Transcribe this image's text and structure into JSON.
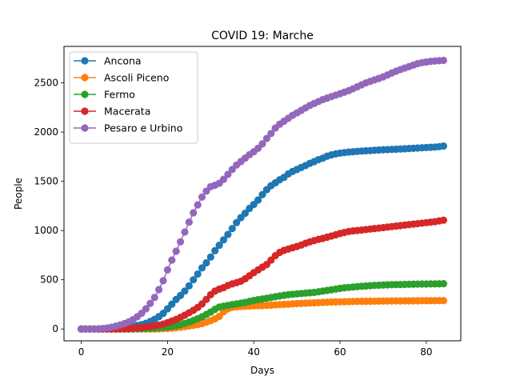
{
  "chart_data": {
    "type": "line",
    "title": "COVID 19: Marche",
    "xlabel": "Days",
    "ylabel": "People",
    "xlim": [
      -4,
      88
    ],
    "ylim": [
      -120,
      2870
    ],
    "xticks": [
      0,
      20,
      40,
      60,
      80
    ],
    "yticks": [
      0,
      500,
      1000,
      1500,
      2000,
      2500
    ],
    "grid": false,
    "legend_position": "upper-left",
    "marker": "circle",
    "x": [
      0,
      1,
      2,
      3,
      4,
      5,
      6,
      7,
      8,
      9,
      10,
      11,
      12,
      13,
      14,
      15,
      16,
      17,
      18,
      19,
      20,
      21,
      22,
      23,
      24,
      25,
      26,
      27,
      28,
      29,
      30,
      31,
      32,
      33,
      34,
      35,
      36,
      37,
      38,
      39,
      40,
      41,
      42,
      43,
      44,
      45,
      46,
      47,
      48,
      49,
      50,
      51,
      52,
      53,
      54,
      55,
      56,
      57,
      58,
      59,
      60,
      61,
      62,
      63,
      64,
      65,
      66,
      67,
      68,
      69,
      70,
      71,
      72,
      73,
      74,
      75,
      76,
      77,
      78,
      79,
      80,
      81,
      82,
      83,
      84
    ],
    "series": [
      {
        "name": "Ancona",
        "color": "#1f77b4",
        "values": [
          0,
          0,
          0,
          0,
          0,
          2,
          4,
          6,
          8,
          11,
          16,
          22,
          29,
          36,
          45,
          58,
          76,
          98,
          125,
          158,
          205,
          252,
          300,
          340,
          385,
          438,
          500,
          558,
          620,
          672,
          730,
          795,
          850,
          905,
          960,
          1020,
          1080,
          1130,
          1175,
          1225,
          1265,
          1310,
          1365,
          1415,
          1455,
          1485,
          1515,
          1540,
          1575,
          1600,
          1620,
          1640,
          1660,
          1682,
          1700,
          1720,
          1735,
          1755,
          1768,
          1778,
          1786,
          1792,
          1797,
          1800,
          1804,
          1807,
          1810,
          1812,
          1815,
          1818,
          1820,
          1822,
          1824,
          1826,
          1828,
          1830,
          1833,
          1835,
          1838,
          1840,
          1843,
          1845,
          1847,
          1852,
          1858
        ]
      },
      {
        "name": "Ascoli Piceno",
        "color": "#ff7f0e",
        "values": [
          0,
          0,
          0,
          0,
          0,
          0,
          0,
          0,
          0,
          0,
          0,
          0,
          0,
          0,
          0,
          0,
          0,
          0,
          2,
          4,
          6,
          9,
          13,
          18,
          24,
          30,
          37,
          45,
          55,
          68,
          84,
          103,
          128,
          175,
          205,
          220,
          225,
          228,
          230,
          232,
          234,
          236,
          238,
          240,
          242,
          245,
          248,
          250,
          252,
          255,
          258,
          260,
          262,
          264,
          266,
          268,
          270,
          272,
          274,
          275,
          276,
          277,
          278,
          279,
          280,
          281,
          281,
          282,
          282,
          283,
          283,
          284,
          284,
          285,
          285,
          285,
          286,
          286,
          286,
          287,
          287,
          287,
          287,
          288,
          288
        ]
      },
      {
        "name": "Fermo",
        "color": "#2ca02c",
        "values": [
          0,
          0,
          0,
          0,
          0,
          0,
          0,
          0,
          0,
          0,
          0,
          1,
          2,
          3,
          4,
          5,
          7,
          9,
          12,
          15,
          20,
          26,
          34,
          44,
          56,
          70,
          86,
          104,
          124,
          148,
          172,
          200,
          222,
          232,
          240,
          248,
          255,
          262,
          270,
          280,
          290,
          298,
          305,
          312,
          320,
          328,
          335,
          342,
          348,
          352,
          356,
          360,
          364,
          368,
          372,
          378,
          385,
          392,
          398,
          405,
          412,
          418,
          422,
          426,
          430,
          434,
          437,
          440,
          443,
          445,
          447,
          449,
          450,
          451,
          452,
          453,
          454,
          455,
          456,
          457,
          457,
          458,
          458,
          459,
          460
        ]
      },
      {
        "name": "Macerata",
        "color": "#d62728",
        "values": [
          0,
          0,
          0,
          0,
          0,
          0,
          0,
          0,
          0,
          1,
          2,
          4,
          7,
          10,
          14,
          19,
          25,
          32,
          40,
          50,
          64,
          80,
          98,
          118,
          140,
          165,
          190,
          218,
          255,
          300,
          348,
          385,
          405,
          420,
          442,
          458,
          470,
          485,
          510,
          540,
          572,
          600,
          628,
          655,
          700,
          745,
          778,
          798,
          812,
          825,
          838,
          852,
          870,
          885,
          898,
          910,
          920,
          932,
          944,
          957,
          970,
          980,
          990,
          996,
          1000,
          1005,
          1010,
          1015,
          1020,
          1025,
          1030,
          1035,
          1040,
          1045,
          1050,
          1055,
          1060,
          1065,
          1070,
          1075,
          1080,
          1085,
          1090,
          1098,
          1105
        ]
      },
      {
        "name": "Pesaro e Urbino",
        "color": "#9467bd",
        "values": [
          0,
          0,
          0,
          0,
          2,
          5,
          10,
          18,
          28,
          40,
          55,
          72,
          95,
          125,
          160,
          205,
          260,
          320,
          400,
          490,
          600,
          700,
          790,
          885,
          985,
          1085,
          1180,
          1260,
          1340,
          1400,
          1445,
          1460,
          1480,
          1520,
          1570,
          1620,
          1665,
          1700,
          1735,
          1770,
          1800,
          1835,
          1880,
          1935,
          1985,
          2040,
          2080,
          2110,
          2140,
          2170,
          2195,
          2220,
          2245,
          2270,
          2290,
          2310,
          2330,
          2345,
          2360,
          2375,
          2390,
          2405,
          2420,
          2440,
          2460,
          2480,
          2500,
          2515,
          2530,
          2545,
          2560,
          2580,
          2600,
          2618,
          2635,
          2650,
          2665,
          2680,
          2695,
          2705,
          2712,
          2718,
          2722,
          2725,
          2728
        ]
      }
    ]
  }
}
